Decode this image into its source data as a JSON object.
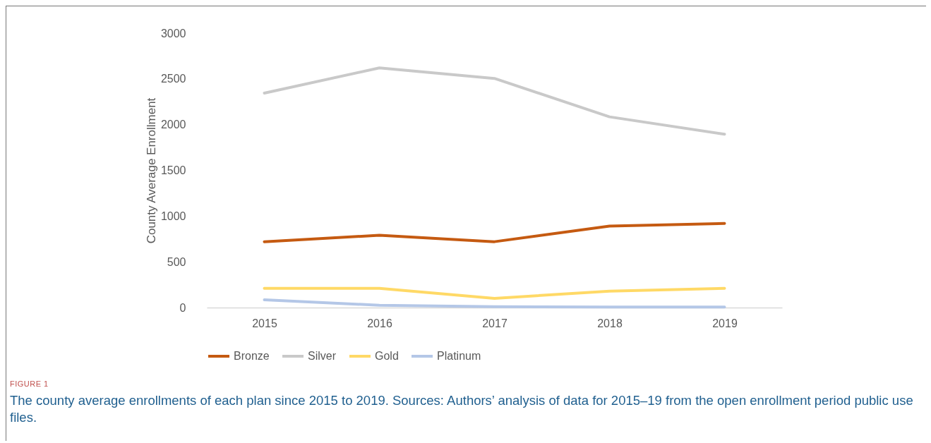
{
  "chart_data": {
    "type": "line",
    "ylabel": "County Average Enrollment",
    "categories": [
      "2015",
      "2016",
      "2017",
      "2018",
      "2019"
    ],
    "series": [
      {
        "name": "Bronze",
        "color": "#c55a11",
        "values": [
          720,
          790,
          720,
          890,
          920
        ]
      },
      {
        "name": "Silver",
        "color": "#c9c9c9",
        "values": [
          2345,
          2620,
          2505,
          2085,
          1895
        ]
      },
      {
        "name": "Gold",
        "color": "#ffd966",
        "values": [
          210,
          210,
          100,
          180,
          210
        ]
      },
      {
        "name": "Platinum",
        "color": "#b4c7e7",
        "values": [
          85,
          25,
          10,
          5,
          5
        ]
      }
    ],
    "ylim": [
      0,
      3000
    ],
    "yticks": [
      0,
      500,
      1000,
      1500,
      2000,
      2500,
      3000
    ],
    "grid": false,
    "legend": "bottom",
    "marker": "none",
    "line_style": "solid",
    "annotations": [
      "FIGURE 1",
      "The county average enrollments of each plan since 2015 to 2019. Sources: Authors’ analysis of data for 2015–19 from the open enrollment period public use files."
    ]
  }
}
